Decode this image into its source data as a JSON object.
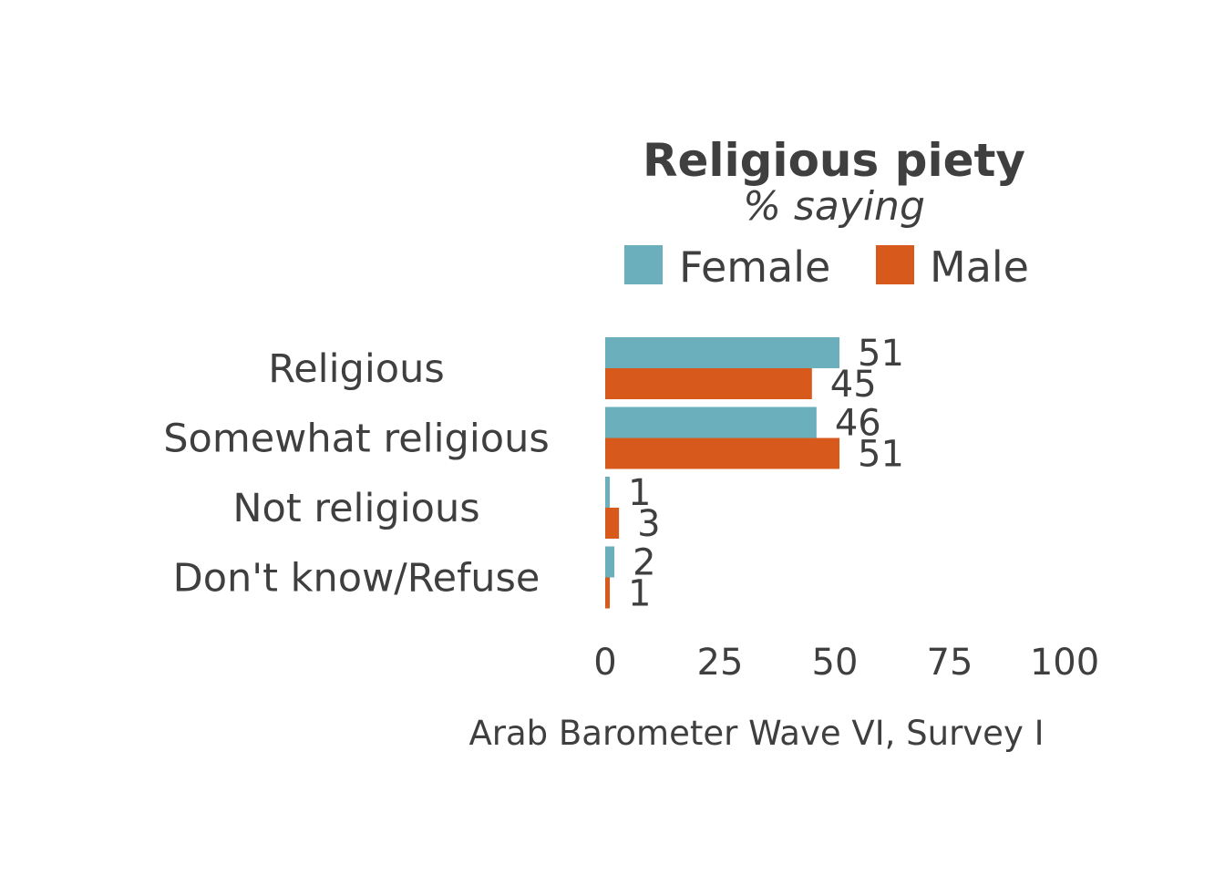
{
  "chart_data": {
    "type": "bar",
    "orientation": "horizontal",
    "title": "Religious piety",
    "subtitle": "% saying",
    "categories": [
      "Religious",
      "Somewhat religious",
      "Not religious",
      "Don't know/Refuse"
    ],
    "series": [
      {
        "name": "Female",
        "color": "#6aafbb",
        "values": [
          51,
          46,
          1,
          2
        ]
      },
      {
        "name": "Male",
        "color": "#d75a1c",
        "values": [
          45,
          51,
          3,
          1
        ]
      }
    ],
    "xlim": [
      0,
      100
    ],
    "xticks": [
      "0",
      "25",
      "50",
      "75",
      "100"
    ],
    "xlabel": "",
    "ylabel": "",
    "grid": false,
    "legend_position": "top",
    "caption": "Arab Barometer Wave VI, Survey I"
  }
}
